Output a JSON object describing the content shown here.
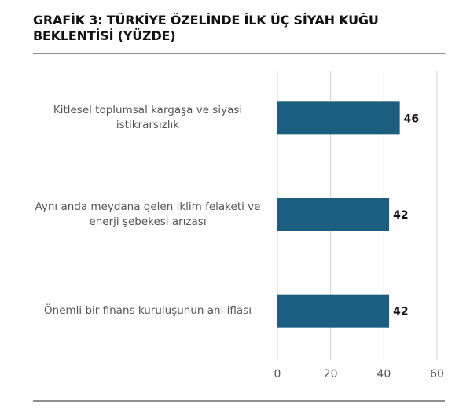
{
  "chart_data": {
    "type": "hbar",
    "title": "GRAFİK 3: TÜRKİYE ÖZELİNDE İLK ÜÇ SİYAH KUĞU BEKLENTİSİ (YÜZDE)",
    "categories": [
      "Kitlesel toplumsal kargaşa ve siyasi istikrarsızlık",
      "Aynı anda meydana gelen iklim felaketi ve enerji şebekesi arızası",
      "Önemli bir finans kuruluşunun ani iflası"
    ],
    "values": [
      46,
      42,
      42
    ],
    "color": "#1b5e80",
    "xlim": [
      0,
      60
    ],
    "xticks": [
      0,
      20,
      40,
      60
    ],
    "grid": true
  }
}
